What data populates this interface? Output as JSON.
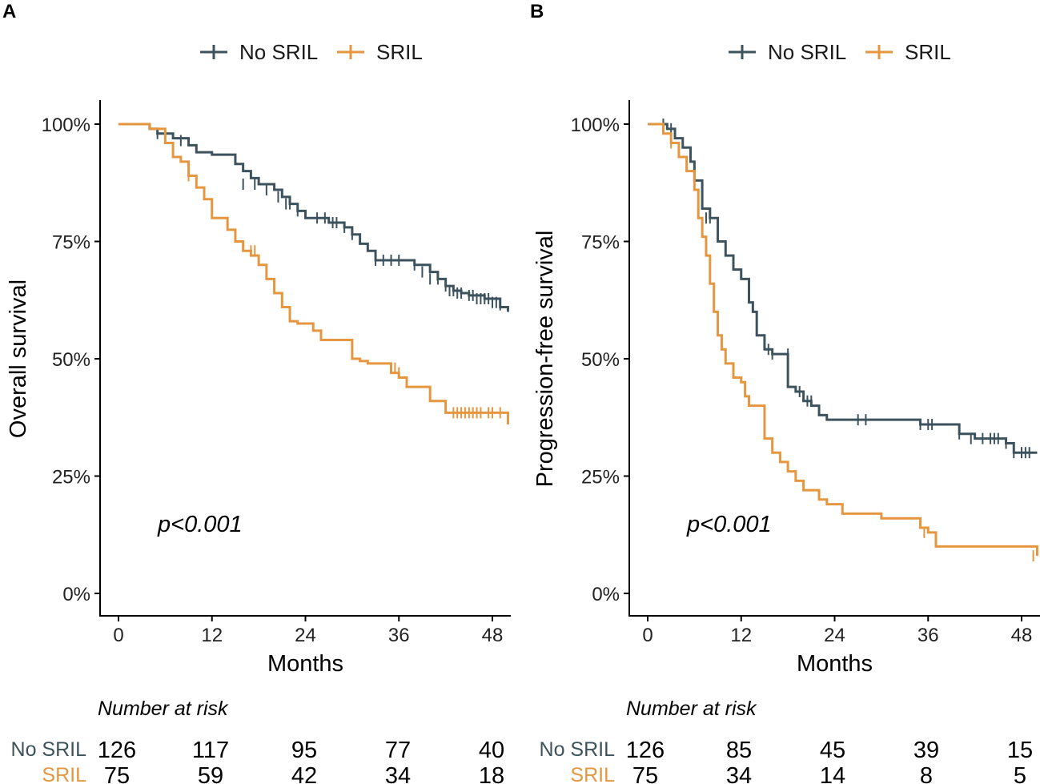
{
  "colors": {
    "no_sril": "#3c525d",
    "sril": "#e5963f"
  },
  "chart_data": [
    {
      "type": "line",
      "step": true,
      "panel": "A",
      "title": "",
      "xlabel": "Months",
      "ylabel": "Overall survival",
      "xlim": [
        0,
        50
      ],
      "ylim": [
        0,
        1
      ],
      "x_ticks": [
        0,
        12,
        24,
        36,
        48
      ],
      "x_tick_labels": [
        "0",
        "12",
        "24",
        "36",
        "48"
      ],
      "y_ticks": [
        0,
        0.25,
        0.5,
        0.75,
        1
      ],
      "y_tick_labels": [
        "0%",
        "25%",
        "50%",
        "75%",
        "100%"
      ],
      "legend": [
        "No SRIL",
        "SRIL"
      ],
      "legend_position": "top",
      "annotation": "p<0.001",
      "series": [
        {
          "name": "No SRIL",
          "x": [
            0,
            4,
            5,
            7,
            9,
            10,
            12,
            15,
            16,
            17,
            18,
            20,
            21,
            22,
            23,
            24,
            27,
            29,
            30,
            31,
            32,
            33,
            36,
            38,
            40,
            41,
            42,
            43,
            44,
            45,
            47,
            49,
            50
          ],
          "y": [
            1,
            0.99,
            0.98,
            0.97,
            0.955,
            0.94,
            0.935,
            0.915,
            0.9,
            0.885,
            0.872,
            0.86,
            0.845,
            0.83,
            0.815,
            0.8,
            0.79,
            0.78,
            0.765,
            0.745,
            0.73,
            0.71,
            0.71,
            0.7,
            0.685,
            0.67,
            0.655,
            0.645,
            0.64,
            0.635,
            0.628,
            0.61,
            0.6
          ],
          "censor_x": [
            5,
            8,
            16,
            17.5,
            19,
            20.5,
            21.5,
            22,
            23,
            25.5,
            26.5,
            27.5,
            28,
            29,
            30,
            33,
            34,
            35,
            36,
            38,
            39,
            40,
            41,
            42,
            42.5,
            43,
            43.5,
            44,
            45,
            45.5,
            46,
            46.5,
            47,
            47.5,
            48,
            48.5,
            49
          ],
          "censor_y": [
            0.98,
            0.965,
            0.872,
            0.872,
            0.86,
            0.845,
            0.83,
            0.83,
            0.815,
            0.8,
            0.8,
            0.79,
            0.79,
            0.78,
            0.765,
            0.71,
            0.71,
            0.71,
            0.71,
            0.7,
            0.685,
            0.67,
            0.67,
            0.655,
            0.645,
            0.645,
            0.64,
            0.64,
            0.635,
            0.635,
            0.628,
            0.628,
            0.628,
            0.628,
            0.62,
            0.62,
            0.615
          ]
        },
        {
          "name": "SRIL",
          "x": [
            0,
            4,
            6,
            7,
            8,
            9,
            10,
            11,
            12,
            14,
            15,
            16,
            17,
            18,
            19,
            20,
            21,
            22,
            23,
            25,
            26,
            27,
            30,
            31,
            32,
            35,
            36,
            37,
            40,
            42,
            50
          ],
          "y": [
            1,
            0.99,
            0.96,
            0.93,
            0.92,
            0.89,
            0.865,
            0.84,
            0.8,
            0.775,
            0.75,
            0.73,
            0.72,
            0.7,
            0.67,
            0.64,
            0.61,
            0.58,
            0.575,
            0.56,
            0.54,
            0.54,
            0.5,
            0.495,
            0.49,
            0.47,
            0.46,
            0.44,
            0.41,
            0.385,
            0.36
          ],
          "censor_x": [
            9,
            10,
            17,
            17.5,
            35.5,
            36,
            43,
            43.5,
            44,
            44.5,
            45,
            45.5,
            46,
            46.5,
            47.5,
            48,
            49
          ],
          "censor_y": [
            0.89,
            0.875,
            0.73,
            0.73,
            0.48,
            0.47,
            0.385,
            0.385,
            0.385,
            0.385,
            0.385,
            0.385,
            0.385,
            0.385,
            0.385,
            0.385,
            0.385
          ]
        }
      ],
      "number_at_risk": {
        "title": "Number at risk",
        "groups": [
          {
            "name": "No SRIL",
            "values": [
              126,
              117,
              95,
              77,
              40
            ]
          },
          {
            "name": "SRIL",
            "values": [
              75,
              59,
              42,
              34,
              18
            ]
          }
        ]
      }
    },
    {
      "type": "line",
      "step": true,
      "panel": "B",
      "title": "",
      "xlabel": "Months",
      "ylabel": "Progression-free survival",
      "xlim": [
        0,
        50
      ],
      "ylim": [
        0,
        1
      ],
      "x_ticks": [
        0,
        12,
        24,
        36,
        48
      ],
      "x_tick_labels": [
        "0",
        "12",
        "24",
        "36",
        "48"
      ],
      "y_ticks": [
        0,
        0.25,
        0.5,
        0.75,
        1
      ],
      "y_tick_labels": [
        "0%",
        "25%",
        "50%",
        "75%",
        "100%"
      ],
      "legend": [
        "No SRIL",
        "SRIL"
      ],
      "legend_position": "top",
      "annotation": "p<0.001",
      "series": [
        {
          "name": "No SRIL",
          "x": [
            0,
            2.5,
            3.5,
            4.5,
            5.5,
            6,
            7,
            8,
            9,
            10,
            11,
            12,
            13,
            13.5,
            14,
            15,
            16,
            17,
            18,
            19,
            20,
            21,
            22,
            23,
            24,
            30,
            35,
            38,
            40,
            42,
            46,
            47,
            50
          ],
          "y": [
            1,
            0.99,
            0.97,
            0.95,
            0.92,
            0.88,
            0.82,
            0.8,
            0.75,
            0.72,
            0.69,
            0.67,
            0.62,
            0.6,
            0.55,
            0.52,
            0.51,
            0.51,
            0.44,
            0.43,
            0.41,
            0.4,
            0.38,
            0.37,
            0.37,
            0.37,
            0.36,
            0.36,
            0.34,
            0.33,
            0.32,
            0.3,
            0.3
          ],
          "censor_x": [
            2,
            3,
            6.5,
            7.5,
            8,
            15.5,
            16,
            18,
            19.5,
            20.5,
            21,
            27,
            28,
            35,
            36,
            36.5,
            40,
            41.5,
            43,
            44,
            44.5,
            45,
            46,
            47,
            48,
            48.5,
            49
          ],
          "censor_y": [
            1,
            0.99,
            0.82,
            0.8,
            0.8,
            0.52,
            0.51,
            0.51,
            0.43,
            0.41,
            0.41,
            0.37,
            0.37,
            0.36,
            0.36,
            0.36,
            0.34,
            0.33,
            0.33,
            0.33,
            0.33,
            0.33,
            0.32,
            0.3,
            0.3,
            0.3,
            0.3
          ]
        },
        {
          "name": "SRIL",
          "x": [
            0,
            2,
            3,
            4,
            5,
            6,
            6.5,
            7,
            7.5,
            8,
            8.5,
            9,
            9.5,
            10,
            11,
            12,
            12.5,
            13,
            15,
            16,
            17,
            18,
            19,
            20,
            22,
            23,
            25,
            30,
            35,
            36,
            37,
            50
          ],
          "y": [
            1,
            0.98,
            0.96,
            0.93,
            0.9,
            0.86,
            0.8,
            0.76,
            0.72,
            0.66,
            0.6,
            0.55,
            0.52,
            0.49,
            0.46,
            0.45,
            0.42,
            0.4,
            0.33,
            0.3,
            0.28,
            0.26,
            0.24,
            0.22,
            0.2,
            0.19,
            0.17,
            0.16,
            0.14,
            0.13,
            0.1,
            0.08
          ],
          "censor_x": [
            3,
            35.5,
            49.5
          ],
          "censor_y": [
            0.96,
            0.13,
            0.08
          ]
        }
      ],
      "number_at_risk": {
        "title": "Number at risk",
        "groups": [
          {
            "name": "No SRIL",
            "values": [
              126,
              85,
              45,
              39,
              15
            ]
          },
          {
            "name": "SRIL",
            "values": [
              75,
              34,
              14,
              8,
              5
            ]
          }
        ]
      }
    }
  ]
}
